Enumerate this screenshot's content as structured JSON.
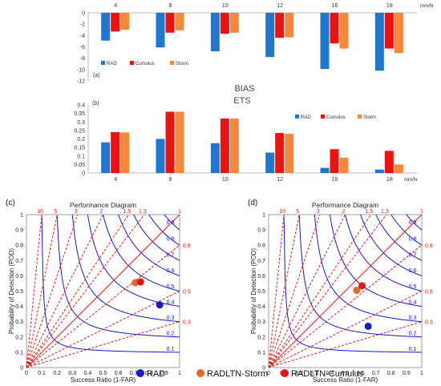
{
  "colors": {
    "rad": "#1f77d0",
    "cumulus": "#ee1111",
    "storm": "#f5883a",
    "perf_blue": "#1818d0",
    "perf_red": "#e31a1c"
  },
  "unit_label": "mm/hr",
  "chart_data": [
    {
      "type": "bar",
      "panel": "(a)",
      "title": "BIAS",
      "categories": [
        "4",
        "8",
        "10",
        "12",
        "16",
        "18"
      ],
      "series": [
        {
          "name": "RAD",
          "values": [
            -4.9,
            -6.1,
            -6.8,
            -7.8,
            -9.9,
            -10.2
          ]
        },
        {
          "name": "Cumulus",
          "values": [
            -3.3,
            -3.5,
            -3.7,
            -4.4,
            -5.4,
            -6.3
          ]
        },
        {
          "name": "Storm",
          "values": [
            -3.0,
            -3.1,
            -3.5,
            -4.3,
            -6.3,
            -7.1
          ]
        }
      ],
      "ylim": [
        -12,
        0
      ],
      "yticks": [
        "0",
        "-2",
        "-4",
        "-6",
        "-8",
        "-10",
        "-12"
      ],
      "legend": "bottom-left",
      "grid": false
    },
    {
      "type": "bar",
      "panel": "(b)",
      "title": "ETS",
      "categories": [
        "4",
        "8",
        "10",
        "12",
        "16",
        "18"
      ],
      "series": [
        {
          "name": "RAD",
          "values": [
            0.18,
            0.2,
            0.175,
            0.12,
            0.03,
            0.02
          ]
        },
        {
          "name": "Cumulus",
          "values": [
            0.24,
            0.36,
            0.32,
            0.235,
            0.14,
            0.13
          ]
        },
        {
          "name": "Storm",
          "values": [
            0.238,
            0.36,
            0.32,
            0.23,
            0.09,
            0.05
          ]
        }
      ],
      "ylim": [
        0,
        0.4
      ],
      "yticks": [
        "0",
        "0.05",
        "0.1",
        "0.15",
        "0.2",
        "0.25",
        "0.3",
        "0.35",
        "0.4"
      ],
      "legend": "top-right",
      "grid": false
    },
    {
      "type": "scatter",
      "panel": "(c)",
      "title": "Performance Diagram",
      "xlabel": "Success Ratio (1-FAR)",
      "ylabel": "Probability of Detection (POD)",
      "xlim": [
        0,
        1
      ],
      "ylim": [
        0,
        1
      ],
      "ticks": [
        "0",
        "0.1",
        "0.2",
        "0.3",
        "0.4",
        "0.5",
        "0.6",
        "0.7",
        "0.8",
        "0.9",
        "1"
      ],
      "csi_labels": [
        "0.1",
        "0.2",
        "0.3",
        "0.4",
        "0.5",
        "0.6",
        "0.7",
        "0.8",
        "0.9"
      ],
      "bias_top_labels": [
        "10",
        "5",
        "3",
        "2",
        "1.5",
        "1.3",
        "1"
      ],
      "bias_right_labels": [
        "0.8",
        "0.5",
        "0.3"
      ],
      "points": [
        {
          "name": "RAD",
          "x": 0.87,
          "y": 0.41
        },
        {
          "name": "RADLTN-Storm",
          "x": 0.71,
          "y": 0.555
        },
        {
          "name": "RADLTN-Cumulus",
          "x": 0.745,
          "y": 0.56
        }
      ]
    },
    {
      "type": "scatter",
      "panel": "(d)",
      "title": "Performance Diagram",
      "xlabel": "Success Ratio (1-FAR)",
      "ylabel": "Probability of Detection (POD)",
      "xlim": [
        0,
        1
      ],
      "ylim": [
        0,
        1
      ],
      "ticks": [
        "0",
        "0.1",
        "0.2",
        "0.3",
        "0.4",
        "0.5",
        "0.6",
        "0.7",
        "0.8",
        "0.9",
        "1"
      ],
      "csi_labels": [
        "0.1",
        "0.2",
        "0.3",
        "0.4",
        "0.5",
        "0.6",
        "0.7",
        "0.8",
        "0.9"
      ],
      "bias_top_labels": [
        "10",
        "5",
        "3",
        "2",
        "1.5",
        "1.3",
        "1"
      ],
      "bias_right_labels": [
        "0.8",
        "0.5",
        "0.3"
      ],
      "points": [
        {
          "name": "RAD",
          "x": 0.65,
          "y": 0.27
        },
        {
          "name": "RADLTN-Storm",
          "x": 0.575,
          "y": 0.505
        },
        {
          "name": "RADLTN-Cumulus",
          "x": 0.61,
          "y": 0.535
        }
      ]
    }
  ],
  "bottom_legend": [
    "RAD",
    "RADLTN-Storm",
    "RADLTN-Cumulus"
  ]
}
